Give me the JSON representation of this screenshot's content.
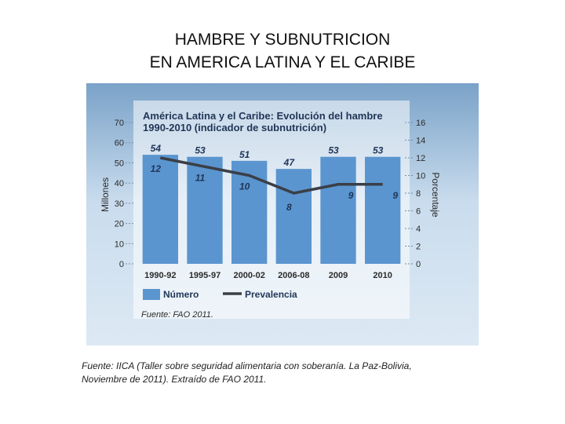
{
  "slide": {
    "title_lines": [
      "HAMBRE Y SUBNUTRICION",
      "EN AMERICA LATINA Y EL CARIBE"
    ],
    "caption_lines": [
      "Fuente: IICA (Taller sobre seguridad alimentaria con soberanía. La Paz-Bolivia,",
      "Noviembre de 2011). Extraído de FAO 2011."
    ]
  },
  "colors": {
    "bar": "#5b95cf",
    "line": "#3a3f47",
    "label": "#1f3557",
    "axis_text": "#2b2b2b"
  },
  "chart_data": {
    "type": "bar",
    "title_lines": [
      "América Latina y el Caribe: Evolución del hambre",
      "1990-2010 (indicador de subnutrición)"
    ],
    "categories": [
      "1990-92",
      "1995-97",
      "2000-02",
      "2006-08",
      "2009",
      "2010"
    ],
    "series": [
      {
        "name": "Número",
        "type": "bar",
        "axis": "left",
        "values": [
          54,
          53,
          51,
          47,
          53,
          53
        ]
      },
      {
        "name": "Prevalencia",
        "type": "line",
        "axis": "right",
        "values": [
          12,
          11,
          10,
          8,
          9,
          9
        ]
      }
    ],
    "ylabel": "Millones",
    "y2label": "Porcentaje",
    "ylim": [
      0,
      70
    ],
    "y_ticks": [
      "0",
      "10",
      "20",
      "30",
      "40",
      "50",
      "60",
      "70"
    ],
    "y2lim": [
      0,
      16
    ],
    "y2_ticks": [
      "0",
      "2",
      "4",
      "6",
      "8",
      "10",
      "12",
      "14",
      "16"
    ],
    "legend": {
      "position": "bottom",
      "labels": [
        "Número",
        "Prevalencia"
      ]
    },
    "source": "Fuente: FAO 2011."
  }
}
